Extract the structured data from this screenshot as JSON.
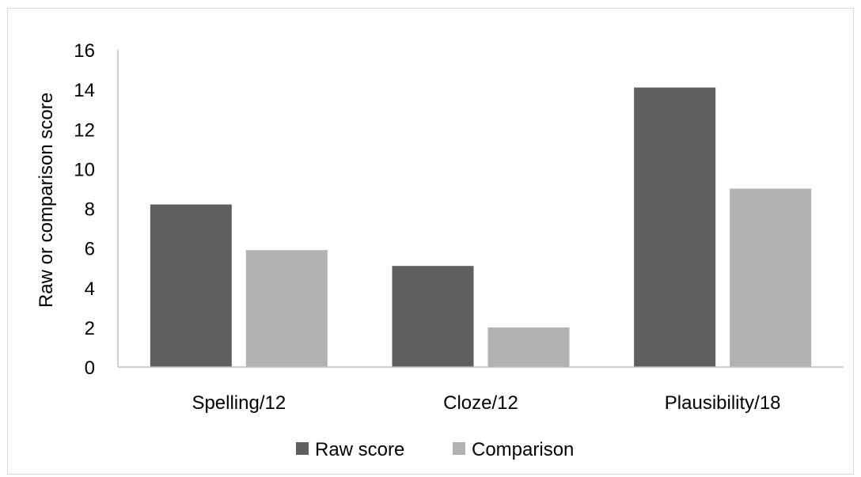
{
  "chart_data": {
    "type": "bar",
    "title": "",
    "xlabel": "",
    "ylabel": "Raw or comparison score",
    "ylim": [
      0,
      16
    ],
    "yticks": [
      0,
      2,
      4,
      6,
      8,
      10,
      12,
      14,
      16
    ],
    "grid": false,
    "legend_position": "bottom",
    "categories": [
      "Spelling/12",
      "Cloze/12",
      "Plausibility/18"
    ],
    "series": [
      {
        "name": "Raw score",
        "color": "#5f5f5f",
        "values": [
          8.2,
          5.1,
          14.1
        ]
      },
      {
        "name": "Comparison",
        "color": "#b2b2b2",
        "values": [
          5.9,
          2.0,
          9.0
        ]
      }
    ]
  }
}
